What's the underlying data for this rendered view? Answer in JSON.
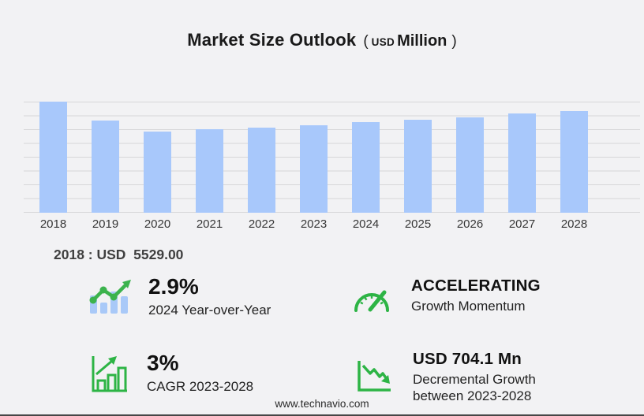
{
  "title": {
    "main": "Market Size Outlook",
    "paren_open": "(",
    "unit_small": "USD",
    "unit_big": "Million",
    "paren_close": ")"
  },
  "chart_data": {
    "type": "bar",
    "title": "Market Size Outlook (USD Million)",
    "unit": "USD Million",
    "categories": [
      "2018",
      "2019",
      "2020",
      "2021",
      "2022",
      "2023",
      "2024",
      "2025",
      "2026",
      "2027",
      "2028"
    ],
    "values": [
      5529,
      4600,
      4045,
      4170,
      4250,
      4370,
      4497,
      4640,
      4760,
      4930,
      5074
    ],
    "ymax": 5529,
    "ylim": [
      0,
      5600
    ],
    "grid": "horizontal",
    "legend": "none",
    "xlabel": "",
    "ylabel": "",
    "annotation": "2018 : USD  5529.00"
  },
  "annotation": {
    "text": "2018 : USD  5529.00"
  },
  "stats": {
    "items": [
      {
        "icon": "bar-trend-up-icon",
        "value": "2.9%",
        "label": "2024 Year-over-Year"
      },
      {
        "icon": "speedometer-icon",
        "value": "ACCELERATING",
        "label": "Growth Momentum"
      },
      {
        "icon": "bar-growth-icon",
        "value": "3%",
        "label": "CAGR 2023-2028"
      },
      {
        "icon": "downward-trend-icon",
        "value": "USD 704.1 Mn",
        "label": "Decremental Growth between 2023-2028"
      }
    ]
  },
  "footer": {
    "url": "www.technavio.com"
  },
  "colors": {
    "page_bg": "#f2f2f4",
    "bar": "#a8c8fb",
    "grid": "#d7d7d9",
    "text_dark": "#1a1a1a",
    "axis_text": "#363636",
    "annotation_text": "#3f3f3f",
    "stat_value": "#111111",
    "stat_label": "#222222",
    "footer_text": "#2a2a2a",
    "strip": "#474747",
    "green": "#2db445",
    "green_line": "#3cb34d",
    "icon_bar_blue": "#a9c9f8"
  }
}
